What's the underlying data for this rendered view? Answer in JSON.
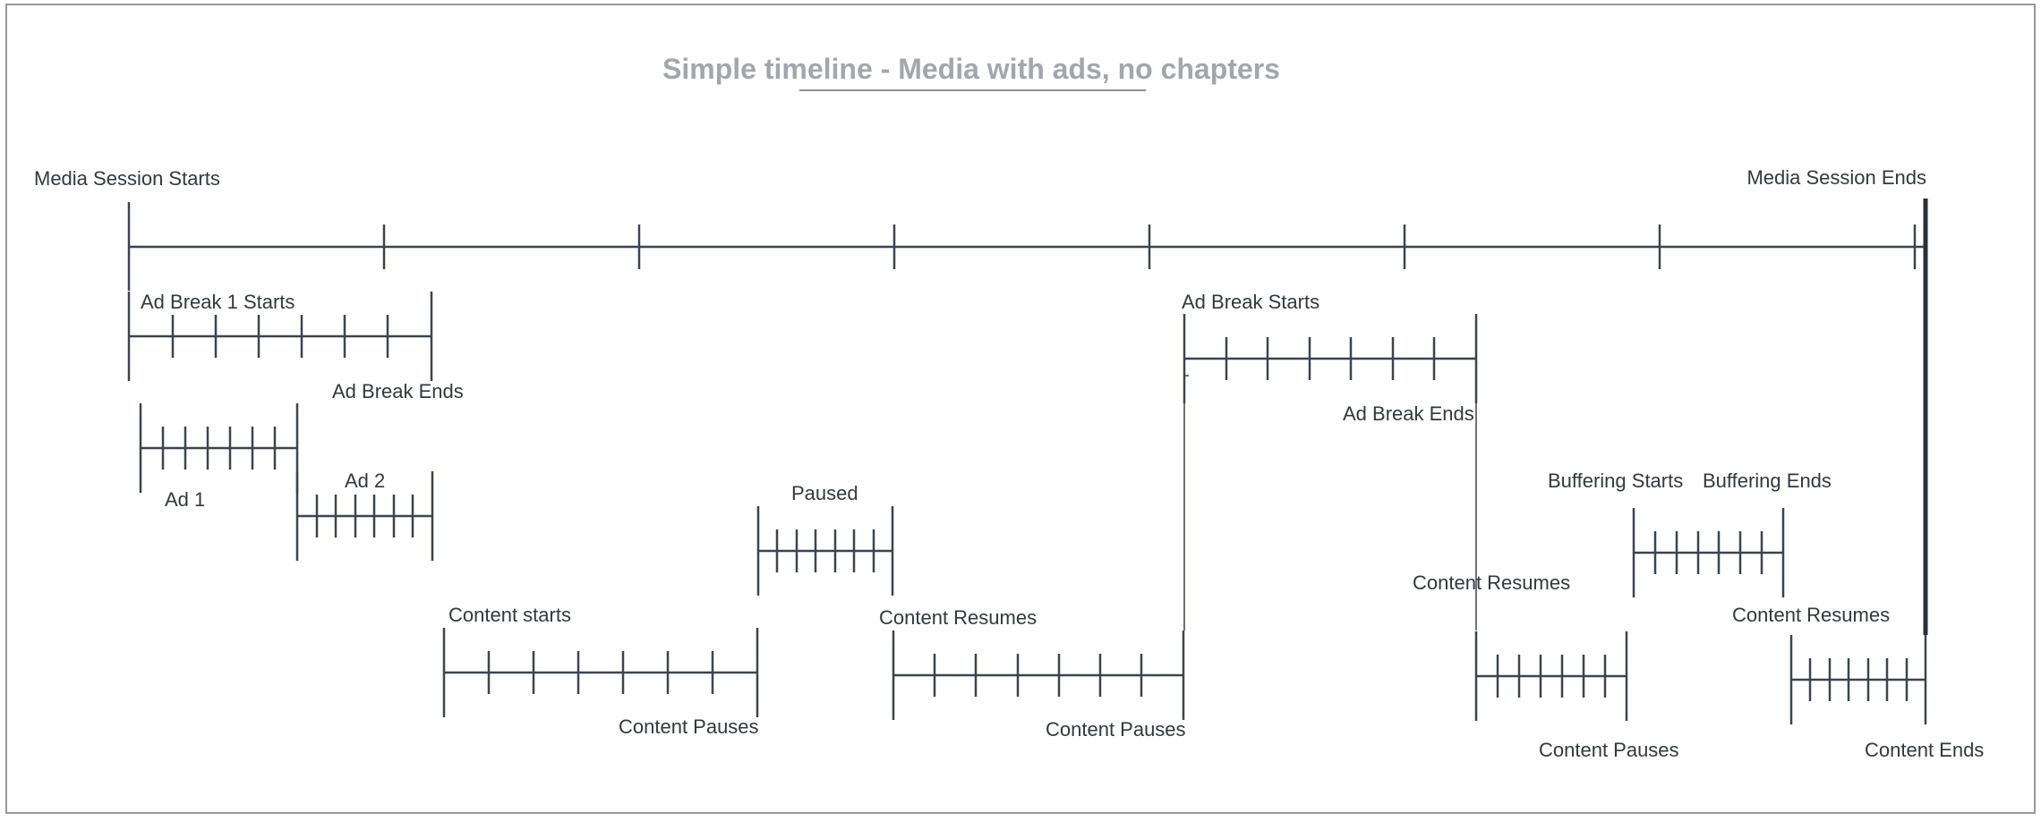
{
  "diagram": {
    "title": "Simple timeline - Media with ads, no chapters",
    "labels": {
      "media_session_starts": "Media Session Starts",
      "media_session_ends": "Media Session Ends",
      "ad_break_1_starts": "Ad Break 1 Starts",
      "ad_break_1_ends": "Ad Break Ends",
      "ad_1": "Ad 1",
      "ad_2": "Ad 2",
      "paused": "Paused",
      "content_starts": "Content starts",
      "content_pauses_1": "Content Pauses",
      "content_resumes_1": "Content Resumes",
      "content_pauses_2": "Content Pauses",
      "ad_break_2_starts": "Ad Break Starts",
      "ad_break_2_ends": "Ad Break Ends",
      "content_resumes_2": "Content Resumes",
      "content_pauses_3": "Content Pauses",
      "buffering_starts": "Buffering Starts",
      "buffering_ends": "Buffering Ends",
      "content_resumes_3": "Content Resumes",
      "content_ends": "Content Ends"
    }
  }
}
